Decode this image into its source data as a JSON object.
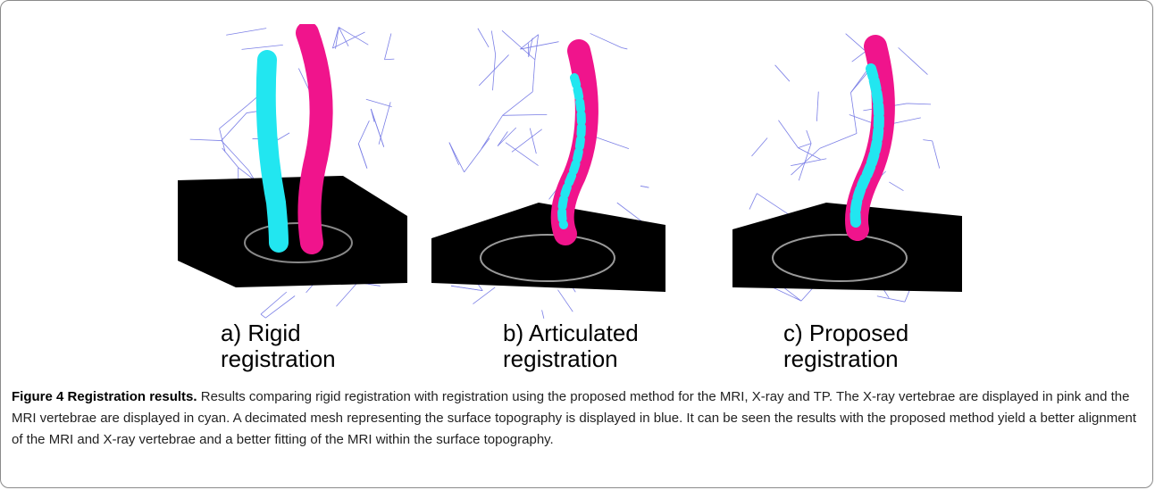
{
  "figure": {
    "label": "Figure 4",
    "title": "Registration results.",
    "caption": "Results comparing rigid registration with registration using the proposed method for the MRI, X-ray and TP. The X-ray vertebrae are displayed in pink and the MRI vertebrae are displayed in cyan. A decimated mesh representing the surface topography is displayed in blue. It can be seen the results with the proposed method yield a better alignment of the MRI and X-ray vertebrae and a better fitting of the MRI within the surface topography.",
    "panels": [
      {
        "line1": "a) Rigid",
        "line2": "registration"
      },
      {
        "line1": "b) Articulated",
        "line2": "registration"
      },
      {
        "line1": "c) Proposed",
        "line2": "registration"
      }
    ]
  },
  "colors": {
    "mesh": "#7b7fe6",
    "xray_vertebrae": "#f0148c",
    "mri_vertebrae": "#22e6f0",
    "mri_slice": "#000000"
  }
}
